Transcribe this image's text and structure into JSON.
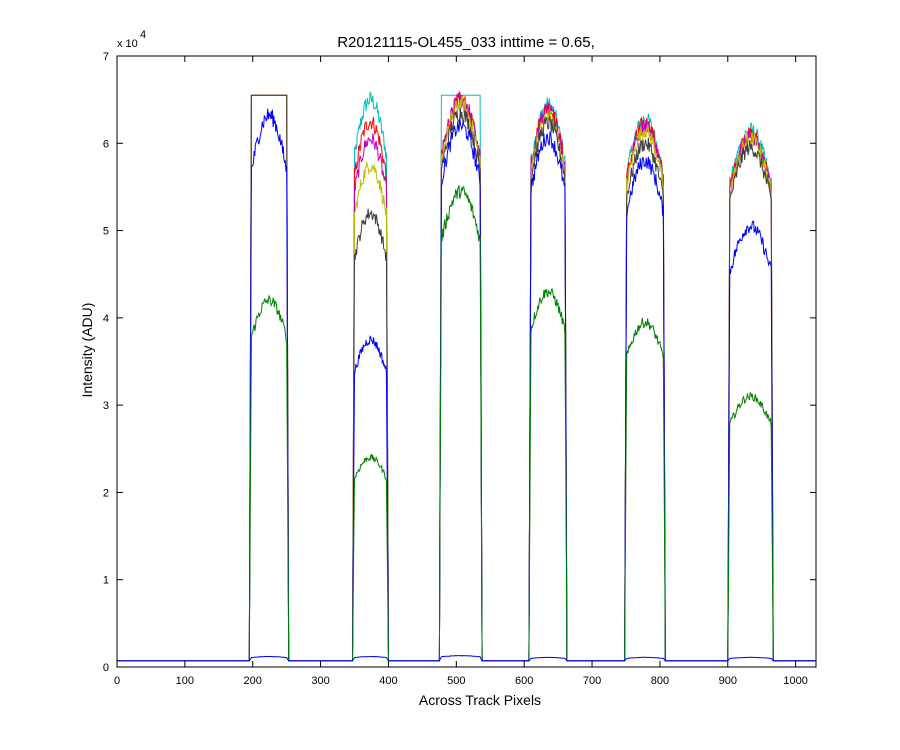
{
  "chart_data": {
    "type": "line",
    "title": "R20121115-OL455_033 inttime = 0.65,",
    "xlabel": "Across Track Pixels",
    "ylabel": "Intensity (ADU)",
    "y_multiplier_base": "x 10",
    "y_multiplier_exponent": "4",
    "xlim": [
      0,
      1030
    ],
    "ylim": [
      0,
      70000
    ],
    "xticks": [
      0,
      100,
      200,
      300,
      400,
      500,
      600,
      700,
      800,
      900,
      1000
    ],
    "yticks": [
      0,
      10000,
      20000,
      30000,
      40000,
      50000,
      60000,
      70000
    ],
    "ytick_labels": [
      "0",
      "1",
      "2",
      "3",
      "4",
      "5",
      "6",
      "7"
    ],
    "xtick_labels": [
      "0",
      "100",
      "200",
      "300",
      "400",
      "500",
      "600",
      "700",
      "800",
      "900",
      "1000"
    ],
    "grid": false,
    "baseline": 700,
    "blocks": [
      {
        "start": 195,
        "end": 253
      },
      {
        "start": 347,
        "end": 400
      },
      {
        "start": 475,
        "end": 538
      },
      {
        "start": 607,
        "end": 663
      },
      {
        "start": 748,
        "end": 808
      },
      {
        "start": 900,
        "end": 967
      }
    ],
    "series": [
      {
        "color": "#00bfbf",
        "levels": [
          65500,
          65000,
          65500,
          64400,
          62800,
          61500
        ]
      },
      {
        "color": "#ff0000",
        "levels": [
          65500,
          62500,
          65000,
          64000,
          62300,
          61000
        ]
      },
      {
        "color": "#bf00bf",
        "levels": [
          65500,
          60500,
          65000,
          63800,
          62000,
          60800
        ]
      },
      {
        "color": "#bfbf00",
        "levels": [
          65500,
          57500,
          64500,
          63000,
          61500,
          60500
        ]
      },
      {
        "color": "#404040",
        "levels": [
          65500,
          52000,
          63500,
          62300,
          60000,
          59500
        ]
      },
      {
        "color": "#0000ff",
        "levels": [
          63200,
          37500,
          62000,
          60700,
          58000,
          50500
        ]
      },
      {
        "color": "#008000",
        "levels": [
          42000,
          24000,
          54500,
          43000,
          39500,
          31000
        ]
      },
      {
        "color": "#0000ff",
        "levels": [
          1200,
          1200,
          1300,
          1100,
          1100,
          1100
        ]
      }
    ]
  }
}
